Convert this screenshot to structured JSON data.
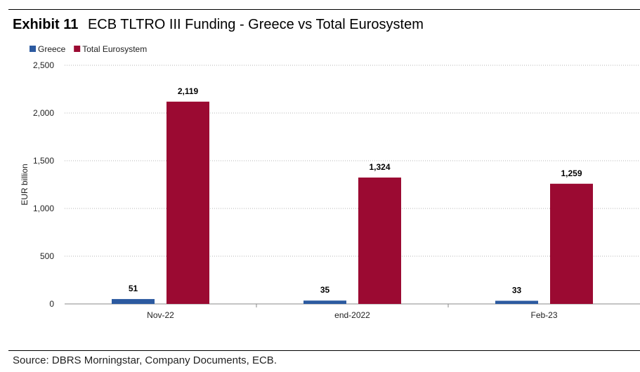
{
  "header": {
    "exhibit": "Exhibit 11",
    "title": "ECB TLTRO III Funding - Greece vs Total Eurosystem"
  },
  "footer": {
    "source": "Source: DBRS Morningstar, Company Documents, ECB."
  },
  "chart_data": {
    "type": "bar",
    "title": "ECB TLTRO III Funding - Greece vs Total Eurosystem",
    "xlabel": "",
    "ylabel": "EUR billion",
    "ylim": [
      0,
      2500
    ],
    "yticks": [
      0,
      500,
      1000,
      1500,
      2000,
      2500
    ],
    "ytick_labels": [
      "0",
      "500",
      "1,000",
      "1,500",
      "2,000",
      "2,500"
    ],
    "grid": true,
    "legend_position": "top-left",
    "categories": [
      "Nov-22",
      "end-2022",
      "Feb-23"
    ],
    "series": [
      {
        "name": "Greece",
        "color": "#2c5aa0",
        "values": [
          51,
          35,
          33
        ],
        "labels": [
          "51",
          "35",
          "33"
        ]
      },
      {
        "name": "Total Eurosystem",
        "color": "#9b0a32",
        "values": [
          2119,
          1324,
          1259
        ],
        "labels": [
          "2,119",
          "1,324",
          "1,259"
        ]
      }
    ]
  }
}
